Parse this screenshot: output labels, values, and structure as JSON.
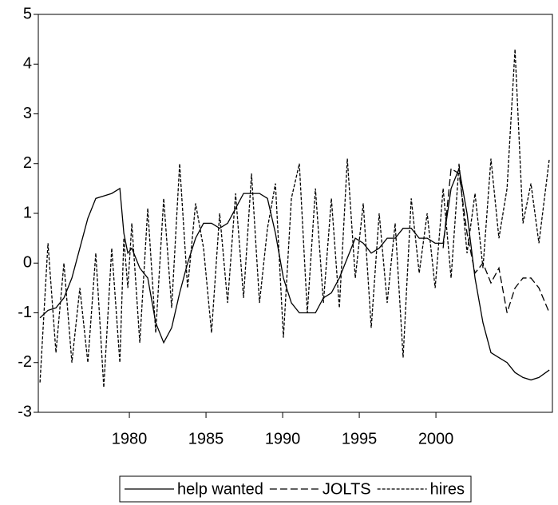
{
  "chart_data": {
    "type": "line",
    "x": [
      1974.17,
      1974.69,
      1975.21,
      1975.73,
      1976.25,
      1976.77,
      1977.29,
      1977.81,
      1978.33,
      1978.85,
      1979.38,
      1979.64,
      1979.9,
      1980.16,
      1980.68,
      1981.2,
      1981.72,
      1982.24,
      1982.76,
      1983.28,
      1983.8,
      1984.32,
      1984.84,
      1985.36,
      1985.89,
      1986.41,
      1986.93,
      1987.45,
      1987.97,
      1988.49,
      1989.01,
      1989.53,
      1990.05,
      1990.57,
      1991.09,
      1991.61,
      1992.14,
      1992.66,
      1993.18,
      1993.7,
      1994.22,
      1994.74,
      1995.26,
      1995.78,
      1996.3,
      1996.82,
      1997.34,
      1997.86,
      1998.39,
      1998.91,
      1999.43,
      1999.95,
      2000.47,
      2000.99,
      2001.51,
      2002.03,
      2002.55,
      2003.07,
      2003.59,
      2004.11,
      2004.64,
      2005.16,
      2005.68,
      2006.2,
      2006.72,
      2007.4
    ],
    "series": [
      {
        "name": "help wanted",
        "color": "#000000",
        "dash": "none",
        "values": [
          -1.1,
          -0.95,
          -0.9,
          -0.7,
          -0.3,
          0.3,
          0.9,
          1.3,
          1.35,
          1.4,
          1.5,
          0.6,
          0.2,
          0.3,
          -0.1,
          -0.3,
          -1.2,
          -1.6,
          -1.3,
          -0.6,
          0,
          0.5,
          0.8,
          0.8,
          0.7,
          0.8,
          1.1,
          1.4,
          1.4,
          1.4,
          1.3,
          0.6,
          -0.3,
          -0.8,
          -1.0,
          -1.0,
          -1.0,
          -0.7,
          -0.6,
          -0.3,
          0.1,
          0.5,
          0.4,
          0.2,
          0.3,
          0.5,
          0.5,
          0.7,
          0.7,
          0.5,
          0.5,
          0.4,
          0.4,
          1.5,
          1.9,
          1.0,
          -0.3,
          -1.2,
          -1.8,
          -1.9,
          -2.0,
          -2.2,
          -2.3,
          -2.35,
          -2.3,
          -2.15
        ]
      },
      {
        "name": "JOLTS",
        "color": "#000000",
        "dash": "9,4",
        "values": [
          null,
          null,
          null,
          null,
          null,
          null,
          null,
          null,
          null,
          null,
          null,
          null,
          null,
          null,
          null,
          null,
          null,
          null,
          null,
          null,
          null,
          null,
          null,
          null,
          null,
          null,
          null,
          null,
          null,
          null,
          null,
          null,
          null,
          null,
          null,
          null,
          null,
          null,
          null,
          null,
          null,
          null,
          null,
          null,
          null,
          null,
          null,
          null,
          null,
          null,
          null,
          null,
          0.3,
          1.9,
          1.8,
          0.6,
          -0.2,
          0,
          -0.4,
          -0.1,
          -1.0,
          -0.5,
          -0.3,
          -0.3,
          -0.5,
          -1.0
        ]
      },
      {
        "name": "hires",
        "color": "#000000",
        "dash": "4,2",
        "values": [
          -2.4,
          0.4,
          -1.8,
          0,
          -2.0,
          -0.5,
          -2.0,
          0.2,
          -2.5,
          0.3,
          -2.0,
          0.5,
          -0.5,
          0.8,
          -1.6,
          1.1,
          -1.4,
          1.3,
          -0.9,
          2.0,
          -0.5,
          1.2,
          0.3,
          -1.4,
          1.0,
          -0.8,
          1.4,
          -0.7,
          1.8,
          -0.8,
          0.7,
          1.6,
          -1.5,
          1.3,
          2.0,
          -1.0,
          1.5,
          -0.8,
          1.3,
          -0.9,
          2.1,
          -0.3,
          1.2,
          -1.3,
          1.0,
          -0.8,
          0.8,
          -1.9,
          1.3,
          -0.2,
          1.0,
          -0.5,
          1.5,
          -0.3,
          2.0,
          0.2,
          1.4,
          -0.1,
          2.1,
          0.5,
          1.5,
          4.3,
          0.8,
          1.6,
          0.4,
          2.1
        ]
      }
    ],
    "xlim": [
      1974.06,
      2007.6
    ],
    "xticks": [
      1980,
      1985,
      1990,
      1995,
      2000
    ],
    "ylim": [
      -3,
      5
    ],
    "yticks": [
      -3,
      -2,
      -1,
      0,
      1,
      2,
      3,
      4,
      5
    ],
    "grid": false,
    "legend": "bottom"
  }
}
